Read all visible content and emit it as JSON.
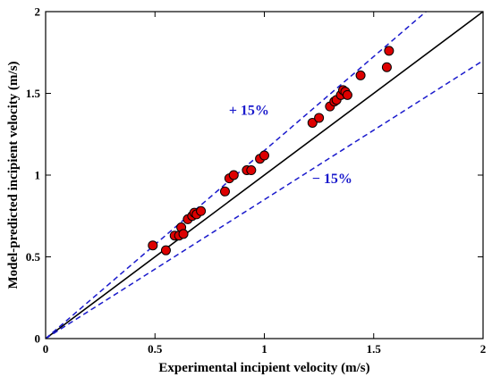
{
  "chart_data": {
    "type": "scatter",
    "title": "",
    "xlabel": "Experimental incipient velocity (m/s)",
    "ylabel": "Model-predicted incipient velocity (m/s)",
    "xlim": [
      0,
      2
    ],
    "ylim": [
      0,
      2
    ],
    "x_ticks": [
      "0",
      "0.5",
      "1",
      "1.5",
      "2"
    ],
    "y_ticks": [
      "0",
      "0.5",
      "1",
      "1.5",
      "2"
    ],
    "grid": false,
    "legend": "none",
    "marker_fill": "#dd0000",
    "marker_edge": "#000000",
    "reference_color": "#000000",
    "band_color": "#1a1acc",
    "reference_lines": [
      {
        "slope": 1.0,
        "style": "solid"
      },
      {
        "slope": 1.15,
        "style": "dashed"
      },
      {
        "slope": 0.85,
        "style": "dashed"
      }
    ],
    "annotations": [
      {
        "text": "+ 15%",
        "x": 0.93,
        "y": 1.37
      },
      {
        "text": "− 15%",
        "x": 1.31,
        "y": 0.95
      }
    ],
    "series": [
      {
        "points": [
          [
            0.49,
            0.57
          ],
          [
            0.55,
            0.54
          ],
          [
            0.59,
            0.63
          ],
          [
            0.61,
            0.63
          ],
          [
            0.62,
            0.68
          ],
          [
            0.63,
            0.64
          ],
          [
            0.65,
            0.73
          ],
          [
            0.67,
            0.75
          ],
          [
            0.68,
            0.77
          ],
          [
            0.69,
            0.76
          ],
          [
            0.71,
            0.78
          ],
          [
            0.82,
            0.9
          ],
          [
            0.84,
            0.98
          ],
          [
            0.86,
            1.0
          ],
          [
            0.92,
            1.03
          ],
          [
            0.94,
            1.03
          ],
          [
            0.98,
            1.1
          ],
          [
            1.0,
            1.12
          ],
          [
            1.22,
            1.32
          ],
          [
            1.25,
            1.35
          ],
          [
            1.3,
            1.42
          ],
          [
            1.32,
            1.45
          ],
          [
            1.33,
            1.46
          ],
          [
            1.35,
            1.49
          ],
          [
            1.36,
            1.52
          ],
          [
            1.37,
            1.51
          ],
          [
            1.38,
            1.49
          ],
          [
            1.44,
            1.61
          ],
          [
            1.56,
            1.66
          ],
          [
            1.57,
            1.76
          ]
        ]
      }
    ]
  }
}
